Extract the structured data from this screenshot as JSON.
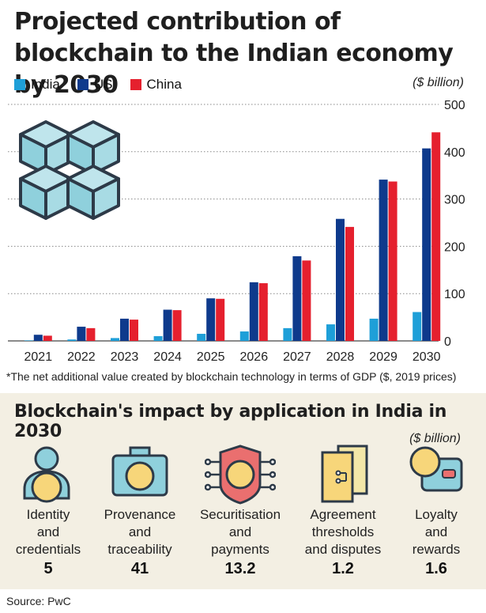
{
  "title": "Projected contribution of blockchain to the Indian economy by 2030",
  "unit": "($ billion)",
  "legend": [
    {
      "name": "India",
      "color": "#1e9fd8"
    },
    {
      "name": "US",
      "color": "#0e3a8c"
    },
    {
      "name": "China",
      "color": "#e5202e"
    }
  ],
  "chart_data": {
    "type": "bar",
    "categories": [
      "2021",
      "2022",
      "2023",
      "2024",
      "2025",
      "2026",
      "2027",
      "2028",
      "2029",
      "2030"
    ],
    "series": [
      {
        "name": "India",
        "values": [
          1,
          3,
          6,
          10,
          15,
          20,
          27,
          35,
          47,
          61
        ]
      },
      {
        "name": "US",
        "values": [
          13,
          30,
          47,
          66,
          90,
          124,
          179,
          258,
          341,
          407
        ]
      },
      {
        "name": "China",
        "values": [
          11,
          27,
          45,
          65,
          89,
          122,
          170,
          241,
          337,
          441
        ]
      }
    ],
    "ylim": [
      0,
      500
    ],
    "yticks": [
      0,
      100,
      200,
      300,
      400,
      500
    ],
    "grid": true
  },
  "footnote": "*The net additional value created by blockchain technology in terms of GDP ($, 2019 prices)",
  "section": {
    "title": "Blockchain's impact by application in India in 2030",
    "unit": "($ billion)",
    "items": [
      {
        "label_lines": [
          "Identity",
          "and",
          "credentials"
        ],
        "value": "5",
        "icon": "person-icon"
      },
      {
        "label_lines": [
          "Provenance",
          "and",
          "traceability"
        ],
        "value": "41",
        "icon": "camera-icon"
      },
      {
        "label_lines": [
          "Securitisation",
          "and",
          "payments"
        ],
        "value": "13.2",
        "icon": "chip-shield-icon"
      },
      {
        "label_lines": [
          "Agreement",
          "thresholds",
          "and disputes"
        ],
        "value": "1.2",
        "icon": "documents-icon"
      },
      {
        "label_lines": [
          "Loyalty",
          "and",
          "rewards"
        ],
        "value": "1.6",
        "icon": "wallet-icon"
      }
    ]
  },
  "source": "Source: PwC"
}
